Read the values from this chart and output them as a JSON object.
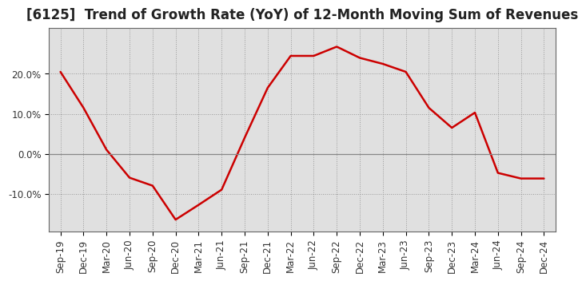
{
  "title": "[6125]  Trend of Growth Rate (YoY) of 12-Month Moving Sum of Revenues",
  "x_labels": [
    "Sep-19",
    "Dec-19",
    "Mar-20",
    "Jun-20",
    "Sep-20",
    "Dec-20",
    "Mar-21",
    "Jun-21",
    "Sep-21",
    "Dec-21",
    "Mar-22",
    "Jun-22",
    "Sep-22",
    "Dec-22",
    "Mar-23",
    "Jun-23",
    "Sep-23",
    "Dec-23",
    "Mar-24",
    "Jun-24",
    "Sep-24",
    "Dec-24"
  ],
  "x_values": [
    0,
    1,
    2,
    3,
    4,
    5,
    6,
    7,
    8,
    9,
    10,
    11,
    12,
    13,
    14,
    15,
    16,
    17,
    18,
    19,
    20,
    21
  ],
  "y_values": [
    0.205,
    0.115,
    0.01,
    -0.06,
    -0.08,
    -0.165,
    -0.128,
    -0.09,
    0.04,
    0.165,
    0.245,
    0.245,
    0.268,
    0.24,
    0.225,
    0.205,
    0.115,
    0.065,
    0.103,
    -0.048,
    -0.062,
    -0.062
  ],
  "line_color": "#cc0000",
  "line_width": 1.8,
  "ylim": [
    -0.195,
    0.315
  ],
  "yticks": [
    -0.1,
    0.0,
    0.1,
    0.2
  ],
  "ytick_labels": [
    "-10.0%",
    "0.0%",
    "10.0%",
    "20.0%"
  ],
  "grid_color": "#999999",
  "bg_color": "#e0e0e0",
  "title_fontsize": 12,
  "tick_fontsize": 8.5
}
